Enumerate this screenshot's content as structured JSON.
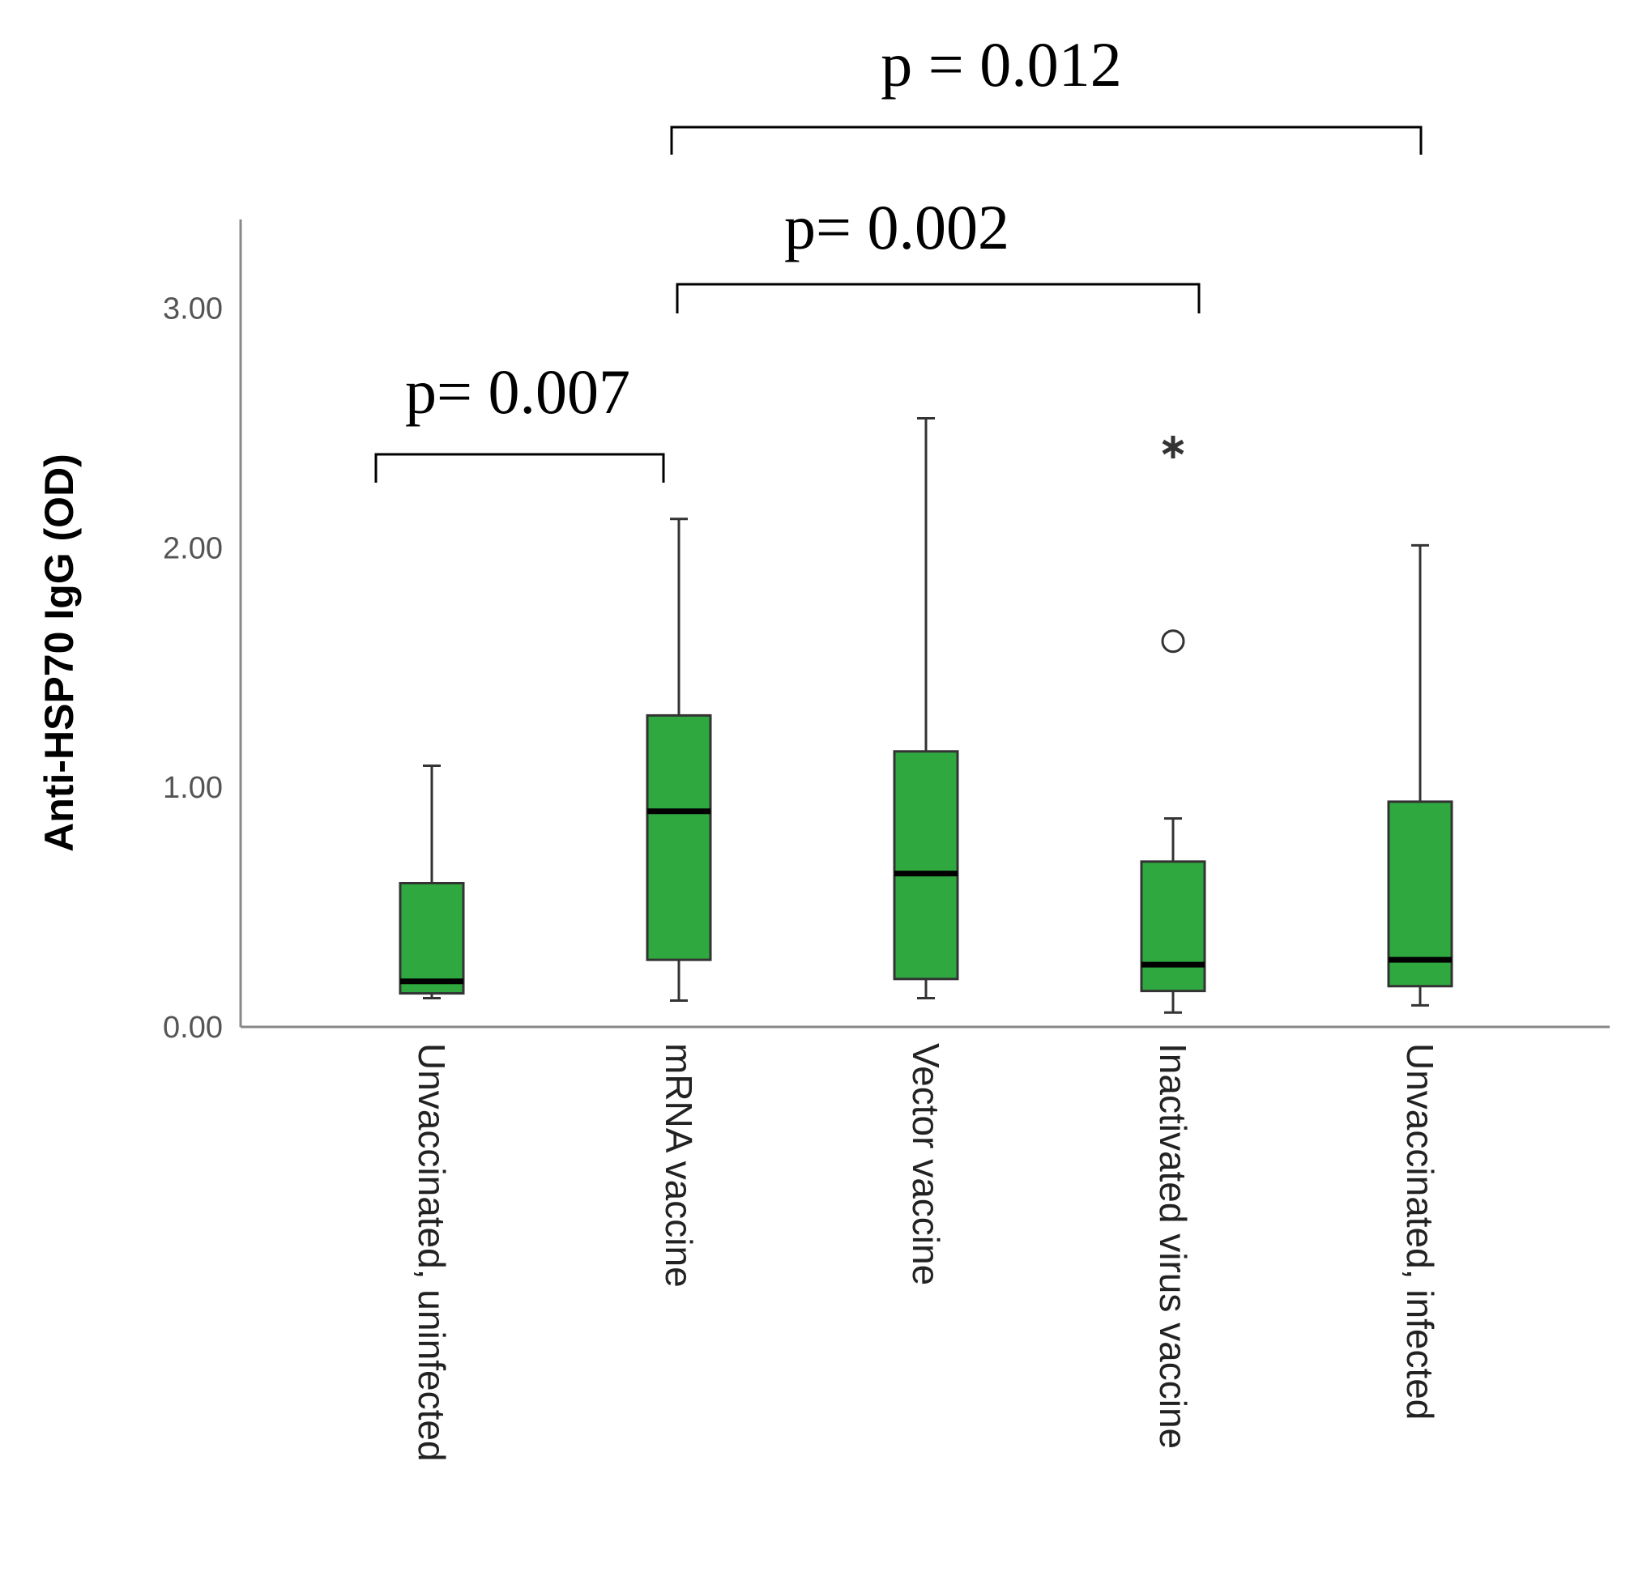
{
  "chart_data": {
    "type": "box",
    "y_label": "Anti-HSP70 IgG (OD)",
    "categories": [
      "Unvaccinated, uninfected",
      "mRNA vaccine",
      "Vector vaccine",
      "Inactivated virus vaccine",
      "Unvaccinated, infected"
    ],
    "boxes": [
      {
        "whisker_low": 0.12,
        "q1": 0.14,
        "median": 0.19,
        "q3": 0.6,
        "whisker_high": 1.09,
        "outliers": []
      },
      {
        "whisker_low": 0.11,
        "q1": 0.28,
        "median": 0.9,
        "q3": 1.3,
        "whisker_high": 2.12,
        "outliers": []
      },
      {
        "whisker_low": 0.12,
        "q1": 0.2,
        "median": 0.64,
        "q3": 1.15,
        "whisker_high": 2.54,
        "outliers": []
      },
      {
        "whisker_low": 0.06,
        "q1": 0.15,
        "median": 0.26,
        "q3": 0.69,
        "whisker_high": 0.87,
        "outliers": [
          {
            "value": 1.61,
            "marker": "circle"
          },
          {
            "value": 2.42,
            "marker": "asterisk"
          }
        ]
      },
      {
        "whisker_low": 0.09,
        "q1": 0.17,
        "median": 0.28,
        "q3": 0.94,
        "whisker_high": 2.01,
        "outliers": []
      }
    ],
    "color": "#2ea83f",
    "ylim": [
      0,
      3.37
    ],
    "yticks": [
      {
        "value": 0,
        "label": "0.00"
      },
      {
        "value": 1,
        "label": "1.00"
      },
      {
        "value": 2,
        "label": "2.00"
      },
      {
        "value": 3,
        "label": "3.00"
      }
    ],
    "grid": false,
    "annotations": [
      "p= 0.007",
      "p= 0.002",
      "p = 0.012"
    ]
  }
}
